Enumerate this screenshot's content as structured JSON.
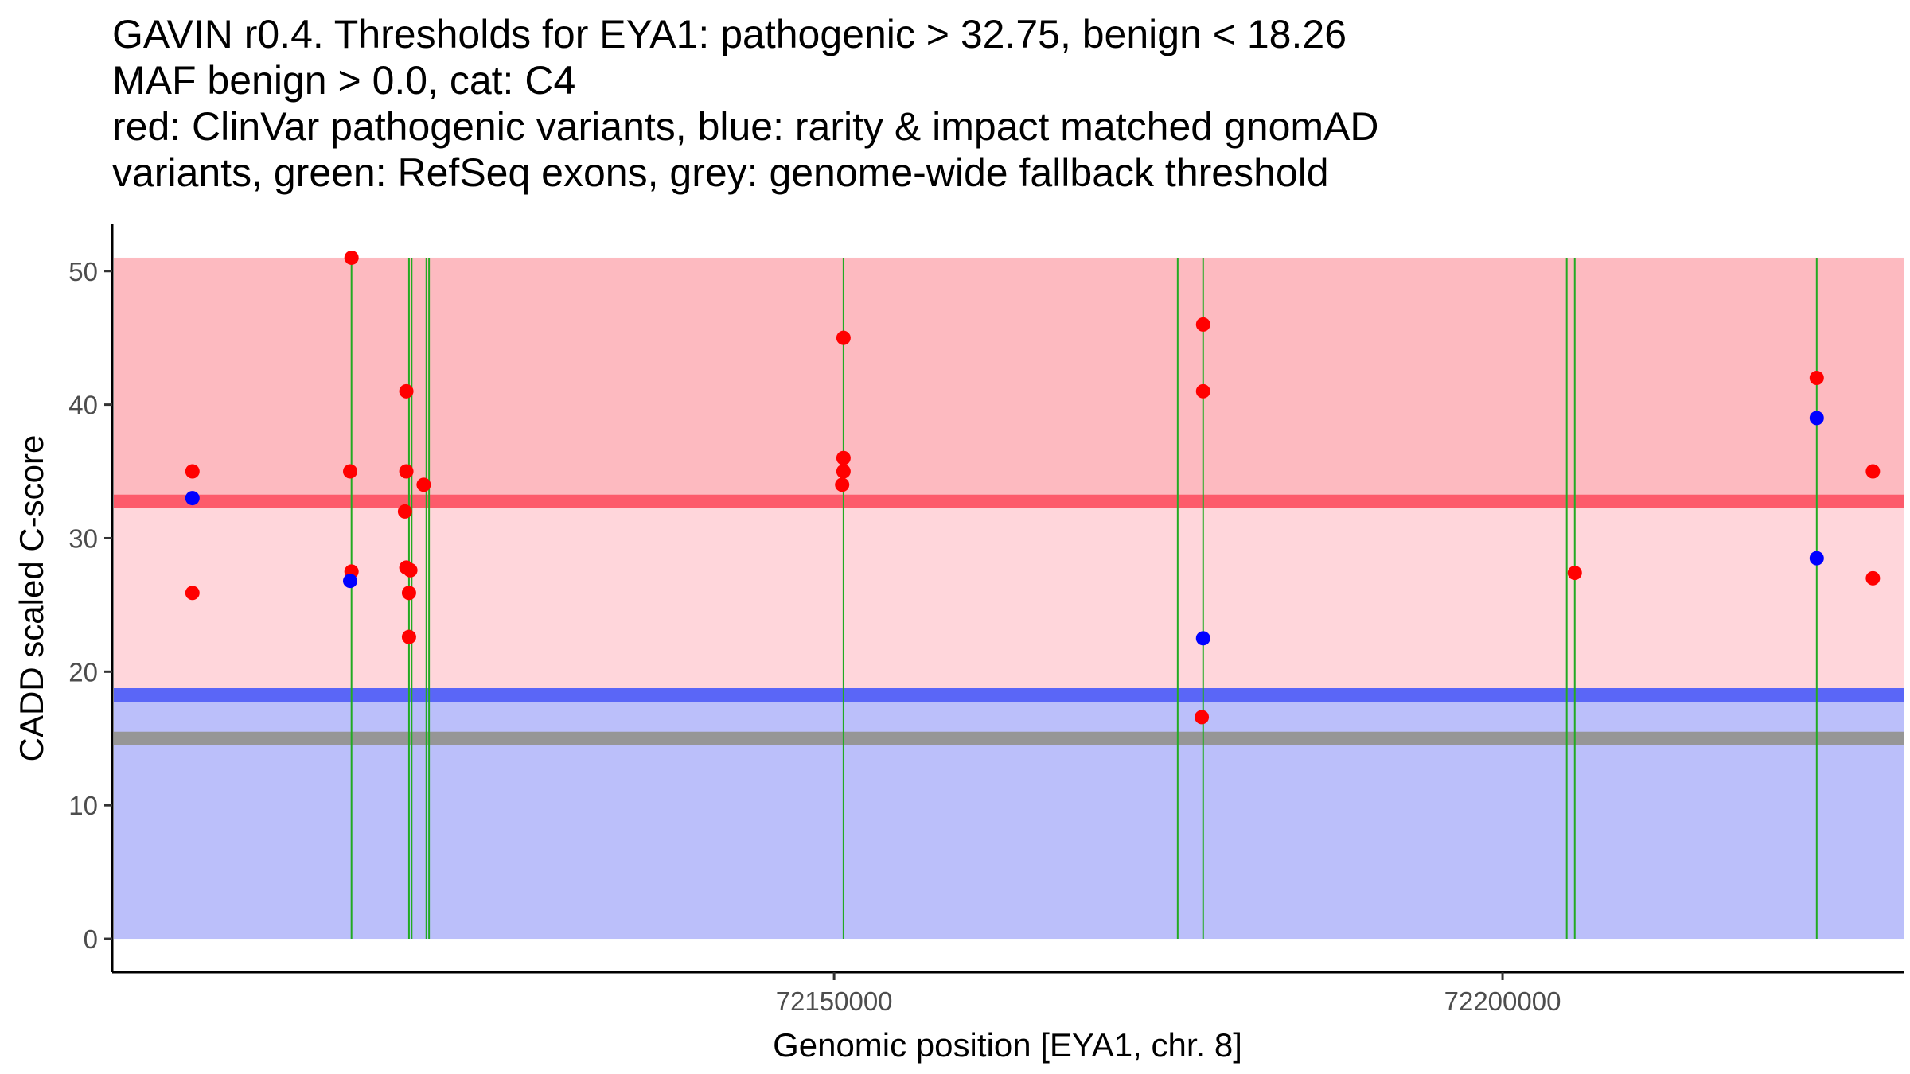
{
  "title_lines": [
    "GAVIN r0.4. Thresholds for EYA1: pathogenic > 32.75, benign < 18.26",
    "MAF benign > 0.0, cat: C4",
    "red: ClinVar pathogenic variants, blue: rarity & impact matched gnomAD",
    "variants, green: RefSeq exons, grey: genome-wide fallback threshold"
  ],
  "chart_data": {
    "type": "scatter",
    "title": "GAVIN r0.4. Thresholds for EYA1: pathogenic > 32.75, benign < 18.26 MAF benign > 0.0, cat: C4 red: ClinVar pathogenic variants, blue: rarity & impact matched gnomAD variants, green: RefSeq exons, grey: genome-wide fallback threshold",
    "xlabel": "Genomic position [EYA1, chr. 8]",
    "ylabel": "CADD scaled C-score",
    "xlim": [
      72096000,
      72230000
    ],
    "ylim": [
      -2.5,
      53.5
    ],
    "x_ticks": [
      72150000,
      72200000
    ],
    "x_tick_labels": [
      "72150000",
      "72200000"
    ],
    "y_ticks": [
      0,
      10,
      20,
      30,
      40,
      50
    ],
    "y_tick_labels": [
      "0",
      "10",
      "20",
      "30",
      "40",
      "50"
    ],
    "thresholds": {
      "pathogenic": 32.75,
      "benign": 18.26,
      "fallback": 15.0,
      "max_score": 51.0
    },
    "bands": [
      {
        "name": "benign-region",
        "from": 0,
        "to": 18.26,
        "color": "#bbbffa"
      },
      {
        "name": "uncertain-region",
        "from": 18.26,
        "to": 32.75,
        "color": "#ffd6db"
      },
      {
        "name": "pathogenic-region",
        "from": 32.75,
        "to": 51,
        "color": "#fdbac0"
      }
    ],
    "threshold_lines": [
      {
        "name": "fallback-threshold",
        "value": 15.0,
        "color": "#969696"
      },
      {
        "name": "benign-threshold",
        "value": 18.26,
        "color": "#5a66f7"
      },
      {
        "name": "pathogenic-threshold",
        "value": 32.75,
        "color": "#fd5b6b"
      }
    ],
    "exons": [
      72113900,
      72118200,
      72118400,
      72119500,
      72119700,
      72150700,
      72175700,
      72177600,
      72204800,
      72205400,
      72223500
    ],
    "series": [
      {
        "name": "ClinVar pathogenic variants",
        "color": "#ff0000",
        "points": [
          {
            "x": 72102000,
            "y": 35
          },
          {
            "x": 72102000,
            "y": 25.9
          },
          {
            "x": 72113900,
            "y": 51
          },
          {
            "x": 72113800,
            "y": 35
          },
          {
            "x": 72113900,
            "y": 27.5
          },
          {
            "x": 72118000,
            "y": 41
          },
          {
            "x": 72118000,
            "y": 35
          },
          {
            "x": 72117900,
            "y": 32
          },
          {
            "x": 72118000,
            "y": 27.8
          },
          {
            "x": 72118300,
            "y": 27.6
          },
          {
            "x": 72118200,
            "y": 25.9
          },
          {
            "x": 72118200,
            "y": 22.6
          },
          {
            "x": 72119300,
            "y": 34
          },
          {
            "x": 72150700,
            "y": 45
          },
          {
            "x": 72150700,
            "y": 36
          },
          {
            "x": 72150700,
            "y": 35
          },
          {
            "x": 72150600,
            "y": 34
          },
          {
            "x": 72177600,
            "y": 46
          },
          {
            "x": 72177600,
            "y": 41
          },
          {
            "x": 72177500,
            "y": 16.6
          },
          {
            "x": 72205400,
            "y": 27.4
          },
          {
            "x": 72223500,
            "y": 42
          },
          {
            "x": 72227700,
            "y": 35
          },
          {
            "x": 72227700,
            "y": 27
          }
        ]
      },
      {
        "name": "rarity & impact matched gnomAD variants",
        "color": "#0000ff",
        "points": [
          {
            "x": 72102000,
            "y": 33
          },
          {
            "x": 72113800,
            "y": 26.8
          },
          {
            "x": 72177600,
            "y": 22.5
          },
          {
            "x": 72223500,
            "y": 39
          },
          {
            "x": 72223500,
            "y": 28.5
          }
        ]
      }
    ]
  }
}
